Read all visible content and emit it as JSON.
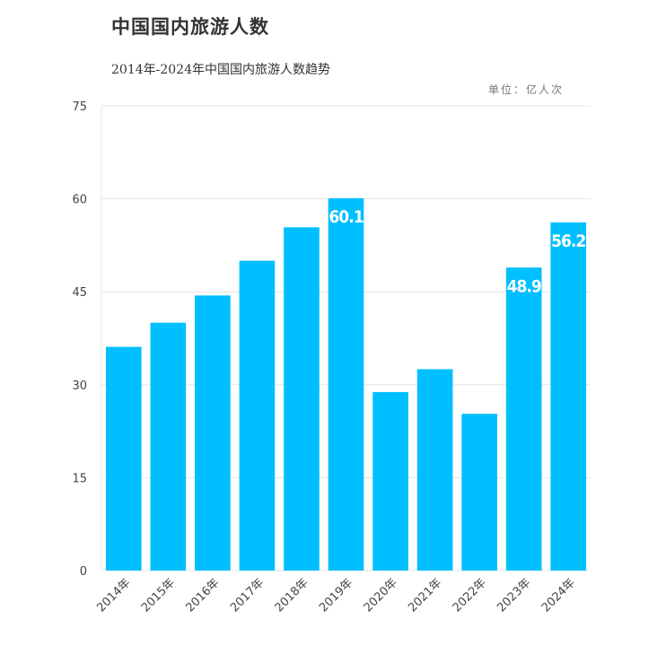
{
  "chart_data": {
    "type": "bar",
    "title": "中国国内旅游人数",
    "subtitle": "2014年-2024年中国国内旅游人数趋势",
    "unit": "单位：亿人次",
    "categories": [
      "2014年",
      "2015年",
      "2016年",
      "2017年",
      "2018年",
      "2019年",
      "2020年",
      "2021年",
      "2022年",
      "2023年",
      "2024年"
    ],
    "values": [
      36.1,
      40.0,
      44.4,
      50.0,
      55.4,
      60.1,
      28.8,
      32.5,
      25.3,
      48.9,
      56.2
    ],
    "data_labels": [
      "",
      "",
      "",
      "",
      "",
      "60.1",
      "",
      "",
      "",
      "48.9",
      "56.2"
    ],
    "yticks": [
      0,
      15,
      30,
      45,
      60,
      75
    ],
    "ylim": [
      0,
      75
    ],
    "grid": true,
    "bar_color": "#00BFFF"
  }
}
